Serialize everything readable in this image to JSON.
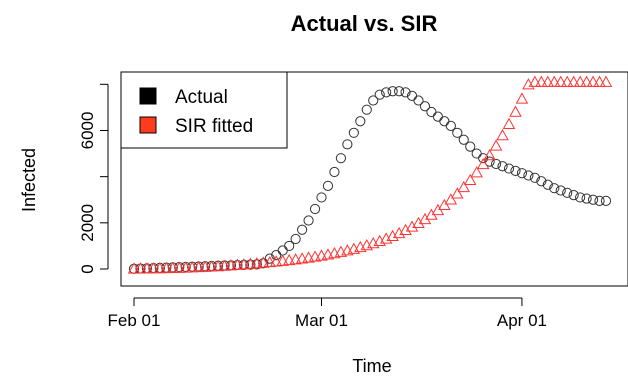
{
  "chart_data": {
    "type": "scatter",
    "title": "Actual vs. SIR",
    "xlabel": "Time",
    "ylabel": "Infected",
    "x_ticks": [
      {
        "label": "Feb 01",
        "day": 0
      },
      {
        "label": "Mar 01",
        "day": 29
      },
      {
        "label": "Apr 01",
        "day": 60
      }
    ],
    "y_ticks": [
      0,
      2000,
      6000
    ],
    "xlim": [
      0,
      74
    ],
    "ylim": [
      0,
      8100
    ],
    "legend": {
      "position": "top-left"
    },
    "grid": false,
    "series": [
      {
        "name": "Actual",
        "marker": "circle",
        "color": "#333333",
        "x": [
          0,
          1,
          2,
          3,
          4,
          5,
          6,
          7,
          8,
          9,
          10,
          11,
          12,
          13,
          14,
          15,
          16,
          17,
          18,
          19,
          20,
          21,
          22,
          23,
          24,
          25,
          26,
          27,
          28,
          29,
          30,
          31,
          32,
          33,
          34,
          35,
          36,
          37,
          38,
          39,
          40,
          41,
          42,
          43,
          44,
          45,
          46,
          47,
          48,
          49,
          50,
          51,
          52,
          53,
          54,
          55,
          56,
          57,
          58,
          59,
          60,
          61,
          62,
          63,
          64,
          65,
          66,
          67,
          68,
          69,
          70,
          71,
          72,
          73
        ],
        "y": [
          10,
          20,
          30,
          40,
          50,
          60,
          70,
          80,
          90,
          100,
          110,
          120,
          130,
          140,
          150,
          160,
          170,
          180,
          190,
          200,
          250,
          450,
          600,
          800,
          1000,
          1300,
          1700,
          2100,
          2600,
          3100,
          3600,
          4200,
          4800,
          5400,
          5900,
          6400,
          6900,
          7300,
          7550,
          7650,
          7700,
          7700,
          7650,
          7500,
          7300,
          7050,
          6800,
          6600,
          6400,
          6200,
          5900,
          5600,
          5300,
          5000,
          4800,
          4650,
          4550,
          4450,
          4350,
          4250,
          4150,
          4050,
          3950,
          3800,
          3650,
          3500,
          3400,
          3300,
          3200,
          3100,
          3050,
          3000,
          2950,
          2950
        ]
      },
      {
        "name": "SIR fitted",
        "marker": "triangle",
        "color": "#ff3333",
        "x": [
          0,
          1,
          2,
          3,
          4,
          5,
          6,
          7,
          8,
          9,
          10,
          11,
          12,
          13,
          14,
          15,
          16,
          17,
          18,
          19,
          20,
          21,
          22,
          23,
          24,
          25,
          26,
          27,
          28,
          29,
          30,
          31,
          32,
          33,
          34,
          35,
          36,
          37,
          38,
          39,
          40,
          41,
          42,
          43,
          44,
          45,
          46,
          47,
          48,
          49,
          50,
          51,
          52,
          53,
          54,
          55,
          56,
          57,
          58,
          59,
          60,
          61,
          62,
          63,
          64,
          65,
          66,
          67,
          68,
          69,
          70,
          71,
          72,
          73
        ],
        "y": [
          10,
          13,
          16,
          20,
          24,
          29,
          35,
          42,
          50,
          60,
          71,
          84,
          98,
          114,
          131,
          150,
          170,
          191,
          214,
          237,
          262,
          288,
          316,
          345,
          376,
          410,
          446,
          485,
          527,
          572,
          622,
          676,
          734,
          797,
          866,
          941,
          1022,
          1110,
          1206,
          1310,
          1423,
          1546,
          1680,
          1825,
          1983,
          2154,
          2341,
          2543,
          2763,
          3001,
          3260,
          3541,
          3846,
          4176,
          4533,
          4919,
          5336,
          5787,
          6275,
          6803,
          7374,
          7992,
          8100,
          8100,
          8100,
          8100,
          8100,
          8100,
          8100,
          8100,
          8100,
          8100,
          8100,
          8100
        ]
      }
    ]
  }
}
